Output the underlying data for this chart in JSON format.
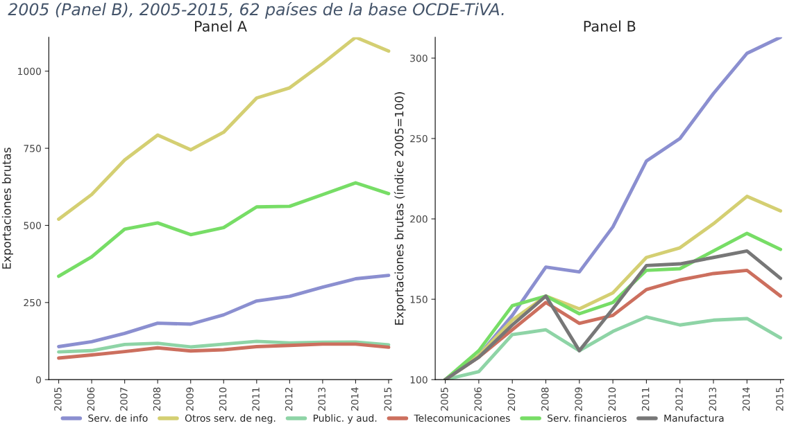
{
  "chart_data": [
    {
      "type": "line",
      "title": "Panel A",
      "ylabel": "Exportaciones brutas",
      "annotations": [
        "2005 (Panel B), 2005-2015, 62 países de la base OCDE-TiVA."
      ],
      "categories": [
        "2005",
        "2006",
        "2007",
        "2008",
        "2009",
        "2010",
        "2011",
        "2012",
        "2013",
        "2014",
        "2015"
      ],
      "ylim": [
        0,
        1110
      ],
      "yticks": [
        0,
        250,
        500,
        750,
        1000
      ],
      "grid": false,
      "legend": "bottom",
      "series": [
        {
          "name": "Serv. de info",
          "color": "#8b8fd0",
          "values": [
            107,
            123,
            150,
            183,
            180,
            210,
            255,
            270,
            300,
            327,
            338
          ]
        },
        {
          "name": "Otros serv. de neg.",
          "color": "#d4cf72",
          "values": [
            520,
            600,
            712,
            793,
            745,
            802,
            913,
            946,
            1025,
            1110,
            1065
          ]
        },
        {
          "name": "Public. y aud.",
          "color": "#8ed4a6",
          "values": [
            90,
            94,
            114,
            118,
            106,
            115,
            124,
            119,
            121,
            122,
            113
          ]
        },
        {
          "name": "Telecomunicaciones",
          "color": "#cc6f5e",
          "values": [
            70,
            80,
            91,
            103,
            93,
            97,
            107,
            111,
            115,
            115,
            105
          ]
        },
        {
          "name": "Serv. financieros",
          "color": "#77dd66",
          "values": [
            335,
            398,
            488,
            508,
            470,
            493,
            560,
            562,
            600,
            638,
            603
          ]
        }
      ]
    },
    {
      "type": "line",
      "title": "Panel B",
      "ylabel": "Exportaciones brutas (índice 2005=100)",
      "categories": [
        "2005",
        "2006",
        "2007",
        "2008",
        "2009",
        "2010",
        "2011",
        "2012",
        "2013",
        "2014",
        "2015"
      ],
      "ylim": [
        100,
        313
      ],
      "yticks": [
        100,
        150,
        200,
        250,
        300
      ],
      "grid": false,
      "legend": "bottom",
      "series": [
        {
          "name": "Serv. de info",
          "color": "#8b8fd0",
          "values": [
            100,
            115,
            140,
            170,
            167,
            195,
            236,
            250,
            278,
            303,
            313
          ]
        },
        {
          "name": "Otros serv. de neg.",
          "color": "#d4cf72",
          "values": [
            100,
            115,
            137,
            152,
            144,
            154,
            176,
            182,
            197,
            214,
            205
          ]
        },
        {
          "name": "Public. y aud.",
          "color": "#8ed4a6",
          "values": [
            100,
            105,
            128,
            131,
            118,
            130,
            139,
            134,
            137,
            138,
            126
          ]
        },
        {
          "name": "Telecomunicaciones",
          "color": "#cc6f5e",
          "values": [
            100,
            114,
            131,
            148,
            135,
            140,
            156,
            162,
            166,
            168,
            152
          ]
        },
        {
          "name": "Serv. financieros",
          "color": "#77dd66",
          "values": [
            100,
            118,
            146,
            152,
            141,
            148,
            168,
            169,
            180,
            191,
            181
          ]
        },
        {
          "name": "Manufactura",
          "color": "#777777",
          "values": [
            100,
            114,
            134,
            152,
            118,
            144,
            171,
            172,
            176,
            180,
            163
          ]
        }
      ]
    }
  ]
}
